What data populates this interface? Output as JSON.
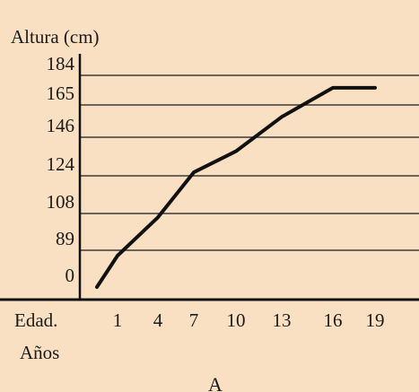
{
  "chart_data": {
    "type": "line",
    "ylabel": "Altura (cm)",
    "xlabel": "Edad.",
    "xlabel_units": "Años",
    "caption": "A",
    "y_ticks": [
      "184",
      "165",
      "146",
      "124",
      "108",
      "89",
      "0"
    ],
    "x_ticks": [
      "1",
      "4",
      "7",
      "10",
      "13",
      "16",
      "19"
    ],
    "grid": true,
    "points": [
      {
        "x": 0,
        "y": 0
      },
      {
        "x": 1,
        "y": 76
      },
      {
        "x": 4,
        "y": 106
      },
      {
        "x": 7,
        "y": 126
      },
      {
        "x": 10,
        "y": 138
      },
      {
        "x": 13,
        "y": 158
      },
      {
        "x": 16,
        "y": 176
      },
      {
        "x": 19,
        "y": 176
      }
    ]
  },
  "colors": {
    "background": "#fae0c3",
    "line": "#111111",
    "grid": "#3a3a3a"
  }
}
